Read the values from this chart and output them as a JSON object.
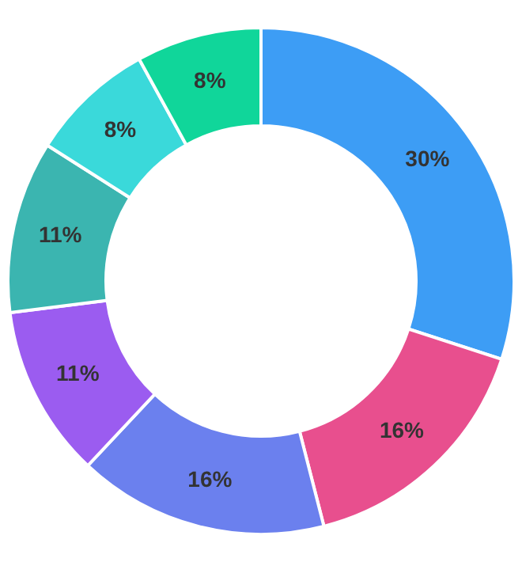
{
  "chart_data": {
    "type": "donut",
    "categories": [
      null,
      null,
      null,
      null,
      null,
      null,
      null
    ],
    "values": [
      30,
      16,
      16,
      11,
      11,
      8,
      8
    ],
    "colors": [
      "#3d9df5",
      "#e84f8e",
      "#6b80ee",
      "#9b5cf0",
      "#3bb5b0",
      "#3ad9da",
      "#10d69a"
    ],
    "value_labels": [
      "30%",
      "16%",
      "16%",
      "11%",
      "11%",
      "8%",
      "8%"
    ]
  }
}
